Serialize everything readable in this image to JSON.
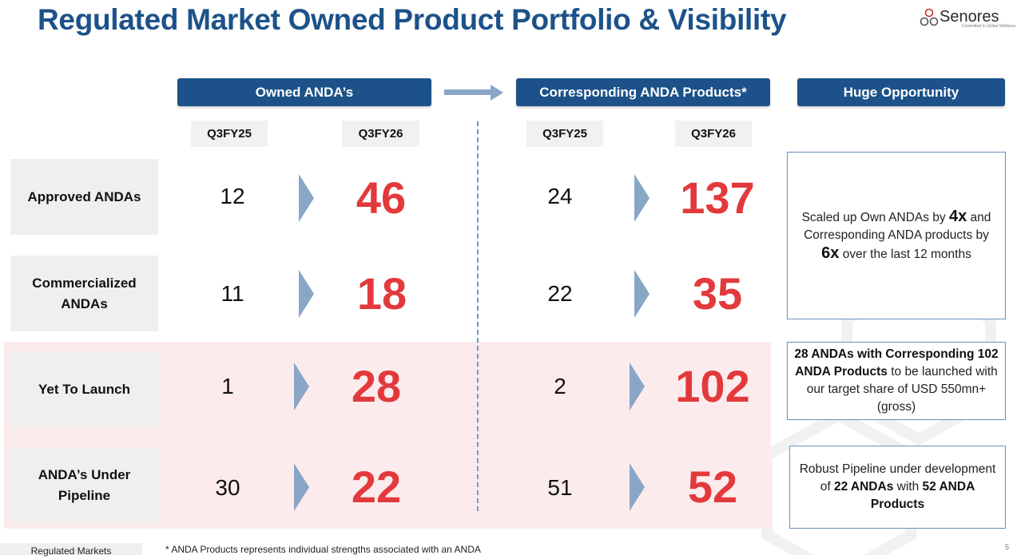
{
  "title": "Regulated Market Owned Product Portfolio & Visibility",
  "logo": {
    "name": "Senores",
    "tagline": "Committed to Global Wellness"
  },
  "headers": {
    "owned": "Owned ANDA’s",
    "corresponding": "Corresponding ANDA Products*",
    "opportunity": "Huge Opportunity"
  },
  "columns": {
    "prev": "Q3FY25",
    "curr": "Q3FY26"
  },
  "rows": [
    {
      "label": "Approved ANDAs",
      "owned_prev": "12",
      "owned_curr": "46",
      "corr_prev": "24",
      "corr_curr": "137"
    },
    {
      "label": "Commercialized ANDAs",
      "owned_prev": "11",
      "owned_curr": "18",
      "corr_prev": "22",
      "corr_curr": "35"
    },
    {
      "label": "Yet To Launch",
      "owned_prev": "1",
      "owned_curr": "28",
      "corr_prev": "2",
      "corr_curr": "102"
    },
    {
      "label": "ANDA’s Under Pipeline",
      "owned_prev": "30",
      "owned_curr": "22",
      "corr_prev": "51",
      "corr_curr": "52"
    }
  ],
  "opportunity": {
    "box1": {
      "t1": "Scaled up Own ANDAs by ",
      "b1": "4x",
      "t2": " and Corresponding ANDA products by ",
      "b2": "6x",
      "t3": " over the last 12 months"
    },
    "box2": {
      "b1": "28 ANDAs with Corresponding 102 ANDA Products",
      "t1": " to be launched with our target share of USD 550mn+ (gross)"
    },
    "box3": {
      "t1": "Robust Pipeline under development of ",
      "b1": "22 ANDAs",
      "t2": " with ",
      "b2": "52 ANDA Products"
    }
  },
  "footer": {
    "tag": "Regulated Markets",
    "note": "* ANDA Products represents individual strengths associated with an ANDA",
    "page": "5"
  },
  "colors": {
    "brand_blue": "#1c5289",
    "accent_red": "#e23a3c",
    "chevron": "#8aa6c6",
    "band_pink": "#fcebec"
  }
}
